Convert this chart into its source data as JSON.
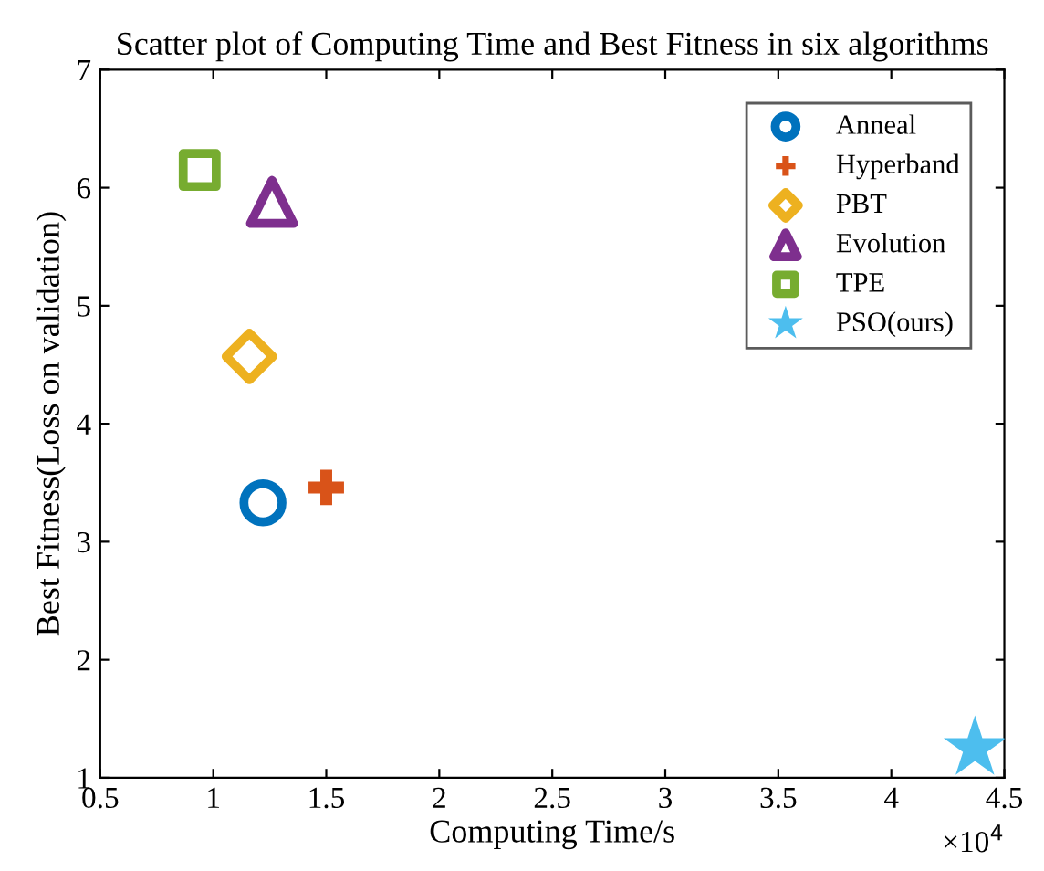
{
  "chart_data": {
    "type": "scatter",
    "title": "Scatter plot of Computing Time and Best Fitness in six algorithms",
    "xlabel": "Computing Time/s",
    "ylabel": "Best Fitness(Loss on validation)",
    "annotations": [
      "×10$^{4}$"
    ],
    "series": [
      {
        "name": "Anneal",
        "color": "#0072bd",
        "marker": "circle",
        "x": [
          1.22
        ],
        "values": [
          3.33
        ]
      },
      {
        "name": "Hyperband",
        "color": "#d95319",
        "marker": "cross",
        "x": [
          1.5
        ],
        "values": [
          3.46
        ]
      },
      {
        "name": "PBT",
        "color": "#edb120",
        "marker": "diamond",
        "x": [
          1.16
        ],
        "values": [
          4.57
        ]
      },
      {
        "name": "Evolution",
        "color": "#7e2f8e",
        "marker": "triangle",
        "x": [
          1.26
        ],
        "values": [
          5.88
        ]
      },
      {
        "name": "TPE",
        "color": "#77ac30",
        "marker": "square",
        "x": [
          0.94
        ],
        "values": [
          6.15
        ]
      },
      {
        "name": "PSO(ours)",
        "color": "#4dbeee",
        "marker": "star",
        "x": [
          4.37
        ],
        "values": [
          1.25
        ]
      }
    ],
    "xlim": [
      0.5,
      4.5
    ],
    "xticks": [
      0.5,
      1,
      1.5,
      2,
      2.5,
      3,
      3.5,
      4,
      4.5
    ],
    "ylim": [
      1,
      7
    ],
    "yticks": [
      1,
      2,
      3,
      4,
      5,
      6,
      7
    ],
    "grid": false,
    "legend": "top right"
  }
}
